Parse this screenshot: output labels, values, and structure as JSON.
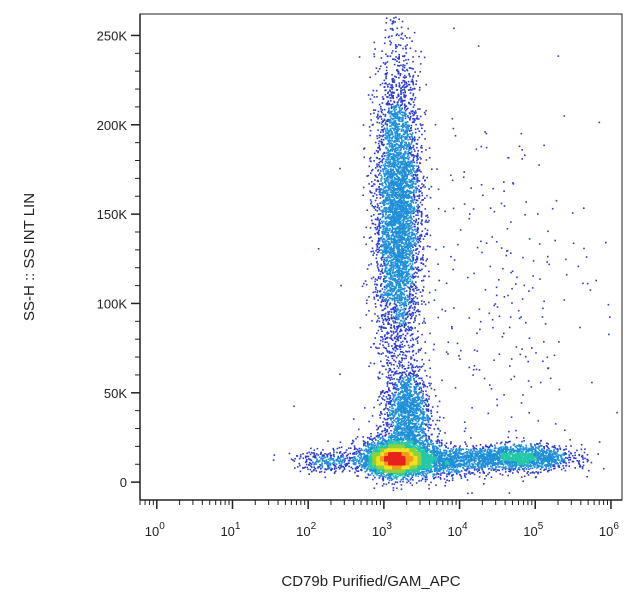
{
  "chart_data": {
    "type": "scatter",
    "subtype": "flow-cytometry-density-dot-plot",
    "title": "",
    "xlabel": "CD79b Purified/GAM_APC",
    "ylabel": "SS-H :: SS INT LIN",
    "x_scale": "log",
    "y_scale": "linear",
    "xlim": [
      0.6,
      1400000
    ],
    "ylim": [
      -10000,
      262000
    ],
    "x_ticks": [
      {
        "value": 1,
        "base": "10",
        "exp": "0"
      },
      {
        "value": 10,
        "base": "10",
        "exp": "1"
      },
      {
        "value": 100,
        "base": "10",
        "exp": "2"
      },
      {
        "value": 1000,
        "base": "10",
        "exp": "3"
      },
      {
        "value": 10000,
        "base": "10",
        "exp": "4"
      },
      {
        "value": 100000,
        "base": "10",
        "exp": "5"
      },
      {
        "value": 1000000,
        "base": "10",
        "exp": "6"
      }
    ],
    "y_ticks": [
      {
        "value": 0,
        "label": "0"
      },
      {
        "value": 50000,
        "label": "50K"
      },
      {
        "value": 100000,
        "label": "100K"
      },
      {
        "value": 150000,
        "label": "150K"
      },
      {
        "value": 200000,
        "label": "200K"
      },
      {
        "value": 250000,
        "label": "250K"
      }
    ],
    "grid": false,
    "legend": "none",
    "density_colors": [
      "#2b3cc4",
      "#1f8fd6",
      "#25c7a8",
      "#8ed23a",
      "#f2e020",
      "#f39a1c",
      "#e8231c"
    ],
    "populations": [
      {
        "center_x": 1400,
        "center_y": 13000,
        "spread_x_decades": 0.16,
        "spread_y": 3200,
        "weight": 0.3
      },
      {
        "center_x": 1600,
        "center_y": 15000,
        "spread_x_decades": 0.26,
        "spread_y": 6500,
        "weight": 0.12
      },
      {
        "center_x": 1500,
        "center_y": 150000,
        "spread_x_decades": 0.15,
        "spread_y": 42000,
        "weight": 0.3
      },
      {
        "center_x": 2000,
        "center_y": 40000,
        "spread_x_decades": 0.15,
        "spread_y": 12000,
        "weight": 0.08
      },
      {
        "center_x": 60000,
        "center_y": 14000,
        "spread_x_decades": 0.35,
        "spread_y": 3500,
        "weight": 0.1
      },
      {
        "center_x": 6000,
        "center_y": 12000,
        "spread_x_decades": 0.3,
        "spread_y": 4000,
        "weight": 0.06
      },
      {
        "center_x": 200,
        "center_y": 12000,
        "spread_x_decades": 0.25,
        "spread_y": 3000,
        "weight": 0.02
      },
      {
        "center_x": 20000,
        "center_y": 100000,
        "spread_x_decades": 0.8,
        "spread_y": 60000,
        "weight": 0.02
      }
    ]
  }
}
